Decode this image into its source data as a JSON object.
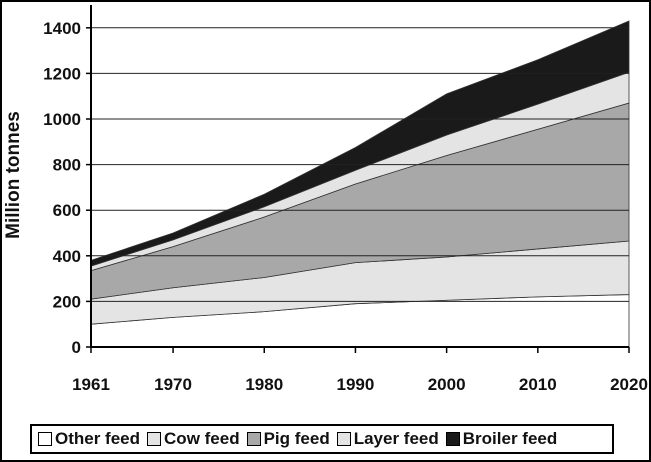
{
  "chart_data": {
    "type": "area",
    "stacked": true,
    "ylabel": "Million tonnes",
    "xlabel": "",
    "x": [
      1961,
      1970,
      1980,
      1990,
      2000,
      2010,
      2020
    ],
    "xticks": [
      "1961",
      "1970",
      "1980",
      "1990",
      "2000",
      "2010",
      "2020"
    ],
    "yticks": [
      "0",
      "200",
      "400",
      "600",
      "800",
      "1000",
      "1200",
      "1400"
    ],
    "ylim": [
      0,
      1500
    ],
    "grid": "horizontal",
    "legend_position": "bottom",
    "series": [
      {
        "name": "Other feed",
        "color": "#ffffff",
        "values": [
          100,
          130,
          155,
          190,
          205,
          220,
          230
        ]
      },
      {
        "name": "Cow feed",
        "color": "#e4e4e4",
        "values": [
          110,
          130,
          150,
          180,
          190,
          210,
          235
        ]
      },
      {
        "name": "Pig feed",
        "color": "#a8a8a8",
        "values": [
          125,
          180,
          265,
          345,
          445,
          525,
          605
        ]
      },
      {
        "name": "Layer feed",
        "color": "#e4e4e4",
        "values": [
          20,
          30,
          45,
          60,
          90,
          110,
          135
        ]
      },
      {
        "name": "Broiler feed",
        "color": "#1a1a1a",
        "values": [
          25,
          30,
          55,
          100,
          180,
          195,
          225
        ]
      }
    ]
  }
}
